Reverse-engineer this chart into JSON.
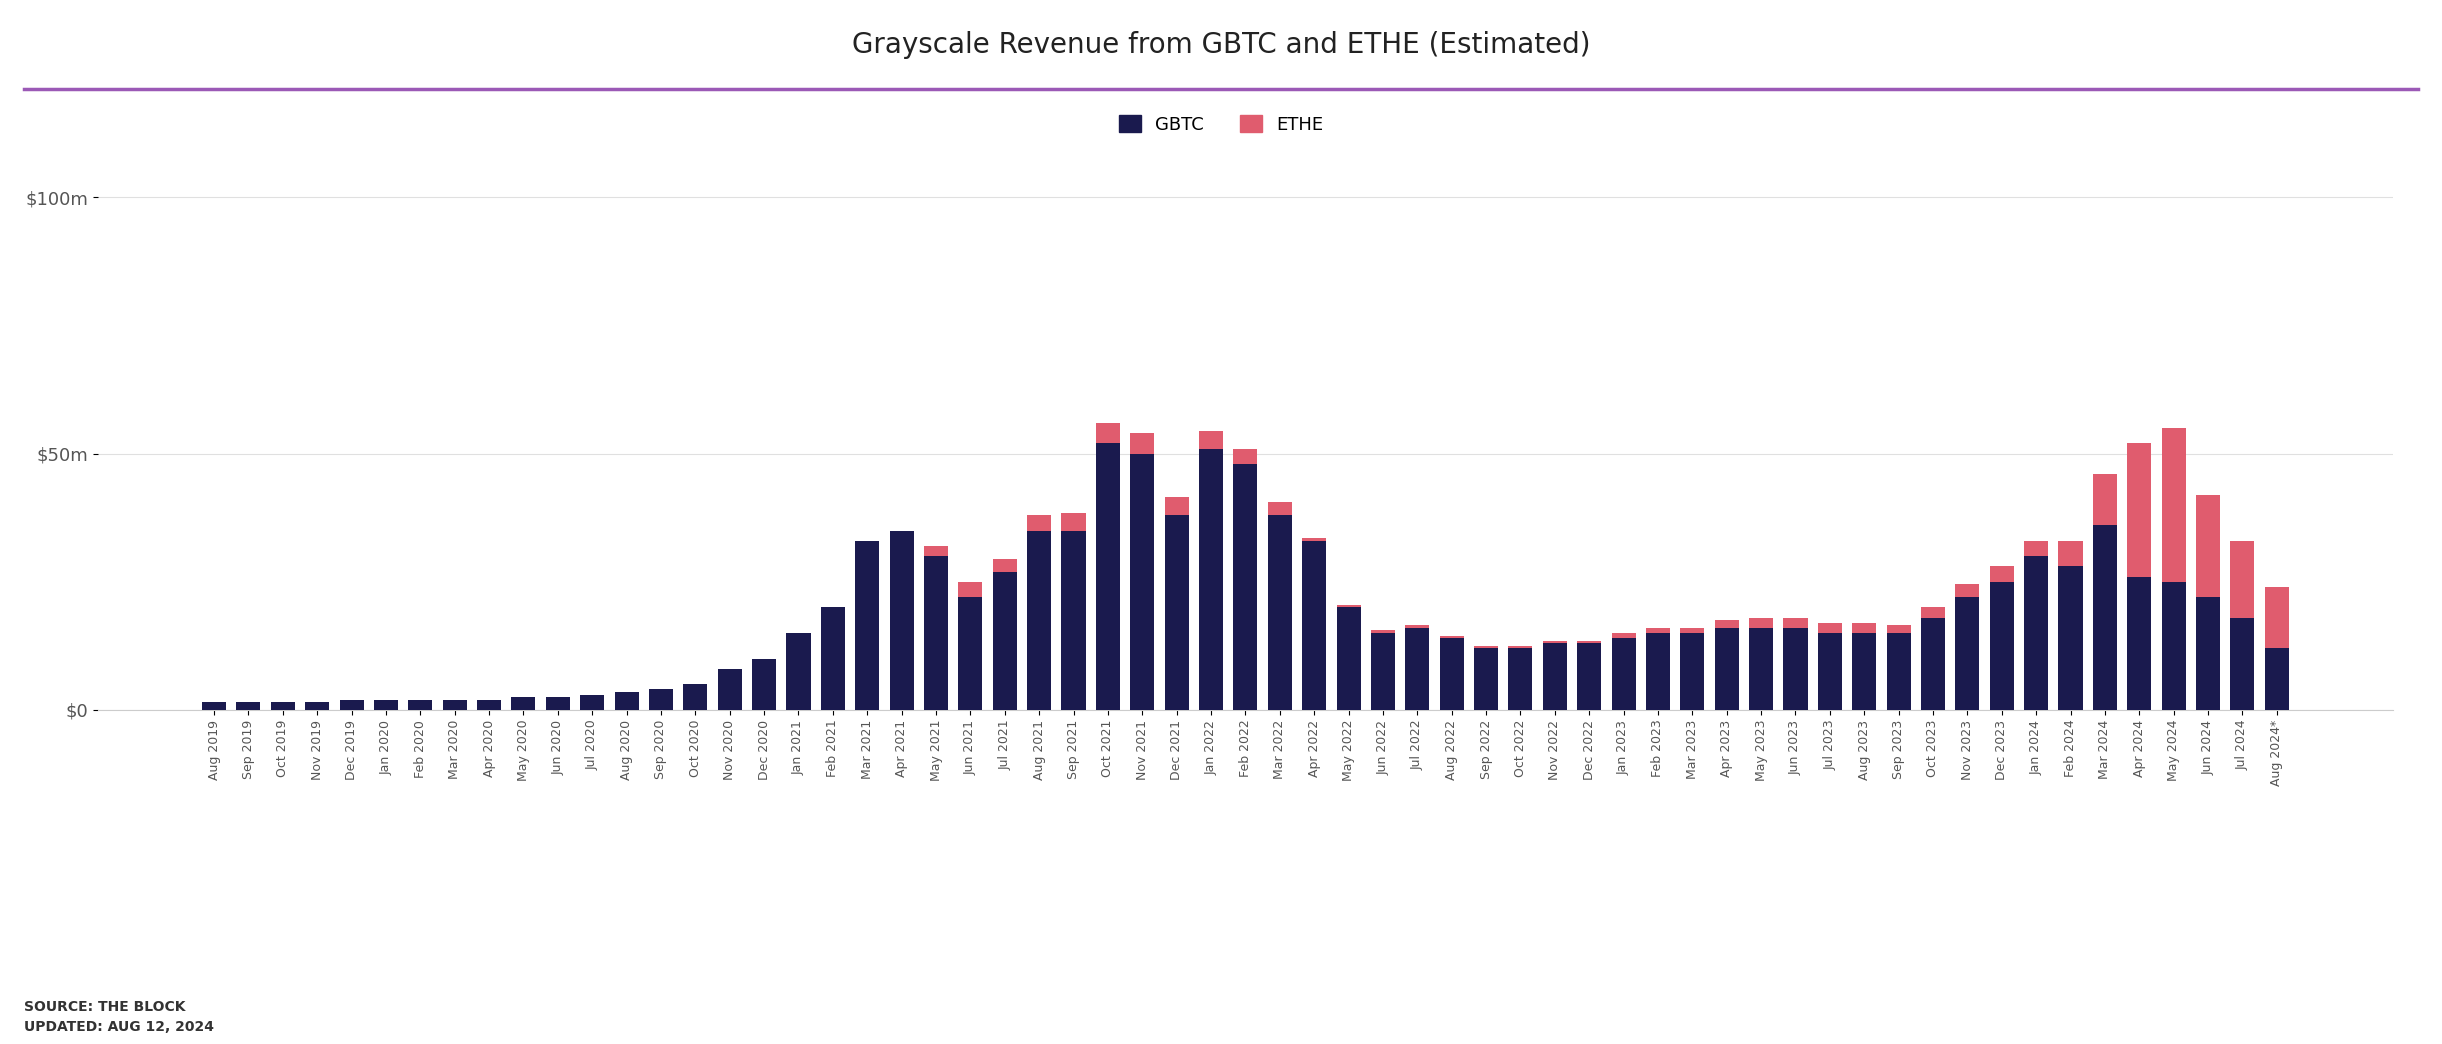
{
  "title": "Grayscale Revenue from GBTC and ETHE (Estimated)",
  "gbtc_color": "#1a1a4e",
  "ethe_color": "#e05c6e",
  "bg_color": "#ffffff",
  "source_text": "SOURCE: THE BLOCK\nUPDATED: AUG 12, 2024",
  "categories": [
    "Aug 2019",
    "Sep 2019",
    "Oct 2019",
    "Nov 2019",
    "Dec 2019",
    "Jan 2020",
    "Feb 2020",
    "Mar 2020",
    "Apr 2020",
    "May 2020",
    "Jun 2020",
    "Jul 2020",
    "Aug 2020",
    "Sep 2020",
    "Oct 2020",
    "Nov 2020",
    "Dec 2020",
    "Jan 2021",
    "Feb 2021",
    "Mar 2021",
    "Apr 2021",
    "May 2021",
    "Jun 2021",
    "Jul 2021",
    "Aug 2021",
    "Sep 2021",
    "Oct 2021",
    "Nov 2021",
    "Dec 2021",
    "Jan 2022",
    "Feb 2022",
    "Mar 2022",
    "Apr 2022",
    "May 2022",
    "Jun 2022",
    "Jul 2022",
    "Aug 2022",
    "Sep 2022",
    "Oct 2022",
    "Nov 2022",
    "Dec 2022",
    "Jan 2023",
    "Feb 2023",
    "Mar 2023",
    "Apr 2023",
    "May 2023",
    "Jun 2023",
    "Jul 2023",
    "Aug 2023",
    "Sep 2023",
    "Oct 2023",
    "Nov 2023",
    "Dec 2023",
    "Jan 2024",
    "Feb 2024",
    "Mar 2024",
    "Apr 2024",
    "May 2024",
    "Jun 2024",
    "Jul 2024",
    "Aug 2024*"
  ],
  "gbtc_values": [
    1.5,
    1.5,
    1.5,
    1.5,
    2.0,
    2.0,
    2.0,
    2.0,
    2.0,
    2.5,
    2.5,
    3.0,
    3.5,
    4.0,
    5.0,
    8.0,
    10.0,
    15.0,
    20.0,
    33.0,
    35.0,
    30.0,
    22.0,
    27.0,
    35.0,
    35.0,
    52.0,
    50.0,
    38.0,
    51.0,
    48.0,
    38.0,
    33.0,
    20.0,
    15.0,
    16.0,
    14.0,
    12.0,
    12.0,
    13.0,
    13.0,
    14.0,
    15.0,
    15.0,
    16.0,
    16.0,
    16.0,
    15.0,
    15.0,
    15.0,
    18.0,
    22.0,
    25.0,
    30.0,
    28.0,
    36.0,
    26.0,
    25.0,
    22.0,
    18.0,
    12.0
  ],
  "ethe_values": [
    0.0,
    0.0,
    0.0,
    0.0,
    0.0,
    0.0,
    0.0,
    0.0,
    0.0,
    0.0,
    0.0,
    0.0,
    0.0,
    0.0,
    0.0,
    0.0,
    0.0,
    0.0,
    0.0,
    0.0,
    0.0,
    2.0,
    3.0,
    2.5,
    3.0,
    3.5,
    4.0,
    4.0,
    3.5,
    3.5,
    3.0,
    2.5,
    0.5,
    0.5,
    0.5,
    0.5,
    0.5,
    0.5,
    0.5,
    0.5,
    0.5,
    1.0,
    1.0,
    1.0,
    1.5,
    2.0,
    2.0,
    2.0,
    2.0,
    1.5,
    2.0,
    2.5,
    3.0,
    3.0,
    5.0,
    10.0,
    26.0,
    30.0,
    20.0,
    15.0,
    12.0
  ],
  "ylim": [
    0,
    110
  ],
  "yticks": [
    0,
    50,
    100
  ],
  "ytick_labels": [
    "$0",
    "$50m",
    "$100m"
  ]
}
